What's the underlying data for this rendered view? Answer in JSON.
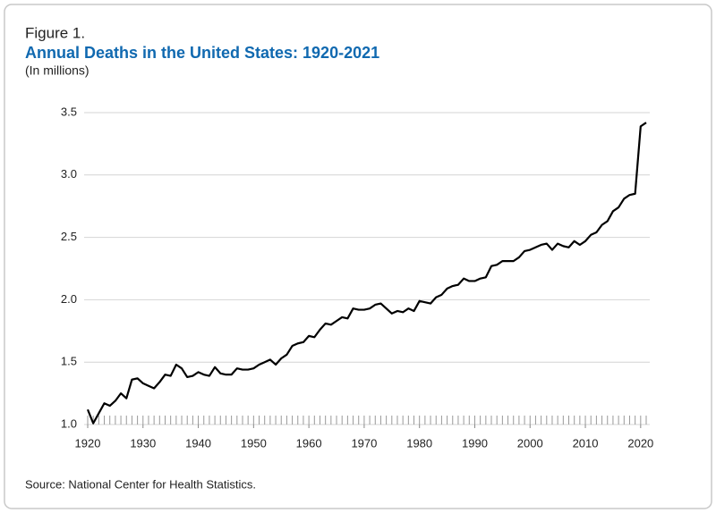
{
  "figure_label": "Figure 1.",
  "chart_data": {
    "type": "line",
    "title": "Annual Deaths in the United States: 1920-2021",
    "subtitle": "(In millions)",
    "source": "Source: National Center for Health Statistics.",
    "x": [
      1920,
      1921,
      1922,
      1923,
      1924,
      1925,
      1926,
      1927,
      1928,
      1929,
      1930,
      1931,
      1932,
      1933,
      1934,
      1935,
      1936,
      1937,
      1938,
      1939,
      1940,
      1941,
      1942,
      1943,
      1944,
      1945,
      1946,
      1947,
      1948,
      1949,
      1950,
      1951,
      1952,
      1953,
      1954,
      1955,
      1956,
      1957,
      1958,
      1959,
      1960,
      1961,
      1962,
      1963,
      1964,
      1965,
      1966,
      1967,
      1968,
      1969,
      1970,
      1971,
      1972,
      1973,
      1974,
      1975,
      1976,
      1977,
      1978,
      1979,
      1980,
      1981,
      1982,
      1983,
      1984,
      1985,
      1986,
      1987,
      1988,
      1989,
      1990,
      1991,
      1992,
      1993,
      1994,
      1995,
      1996,
      1997,
      1998,
      1999,
      2000,
      2001,
      2002,
      2003,
      2004,
      2005,
      2006,
      2007,
      2008,
      2009,
      2010,
      2011,
      2012,
      2013,
      2014,
      2015,
      2016,
      2017,
      2018,
      2019,
      2020,
      2021
    ],
    "series": [
      {
        "name": "Annual deaths",
        "color": "#000000",
        "values": [
          1.12,
          1.01,
          1.09,
          1.17,
          1.15,
          1.19,
          1.25,
          1.21,
          1.36,
          1.37,
          1.33,
          1.31,
          1.29,
          1.34,
          1.4,
          1.39,
          1.48,
          1.45,
          1.38,
          1.39,
          1.42,
          1.4,
          1.39,
          1.46,
          1.41,
          1.4,
          1.4,
          1.45,
          1.44,
          1.44,
          1.45,
          1.48,
          1.5,
          1.52,
          1.48,
          1.53,
          1.56,
          1.63,
          1.65,
          1.66,
          1.71,
          1.7,
          1.76,
          1.81,
          1.8,
          1.83,
          1.86,
          1.85,
          1.93,
          1.92,
          1.92,
          1.93,
          1.96,
          1.97,
          1.93,
          1.89,
          1.91,
          1.9,
          1.93,
          1.91,
          1.99,
          1.98,
          1.97,
          2.02,
          2.04,
          2.09,
          2.11,
          2.12,
          2.17,
          2.15,
          2.15,
          2.17,
          2.18,
          2.27,
          2.28,
          2.31,
          2.31,
          2.31,
          2.34,
          2.39,
          2.4,
          2.42,
          2.44,
          2.45,
          2.4,
          2.45,
          2.43,
          2.42,
          2.47,
          2.44,
          2.47,
          2.52,
          2.54,
          2.6,
          2.63,
          2.71,
          2.74,
          2.81,
          2.84,
          2.85,
          3.39,
          3.42
        ]
      }
    ],
    "xlim": [
      1920,
      2021
    ],
    "xticks": [
      1920,
      1930,
      1940,
      1950,
      1960,
      1970,
      1980,
      1990,
      2000,
      2010,
      2020
    ],
    "ylim": [
      1.0,
      3.5
    ],
    "yticks": [
      {
        "value": 1.0,
        "label": "1.0"
      },
      1.5,
      {
        "value": 2.0,
        "label": "2.0"
      },
      2.5,
      {
        "value": 3.0,
        "label": "3.0"
      },
      3.5
    ],
    "grid": true
  }
}
